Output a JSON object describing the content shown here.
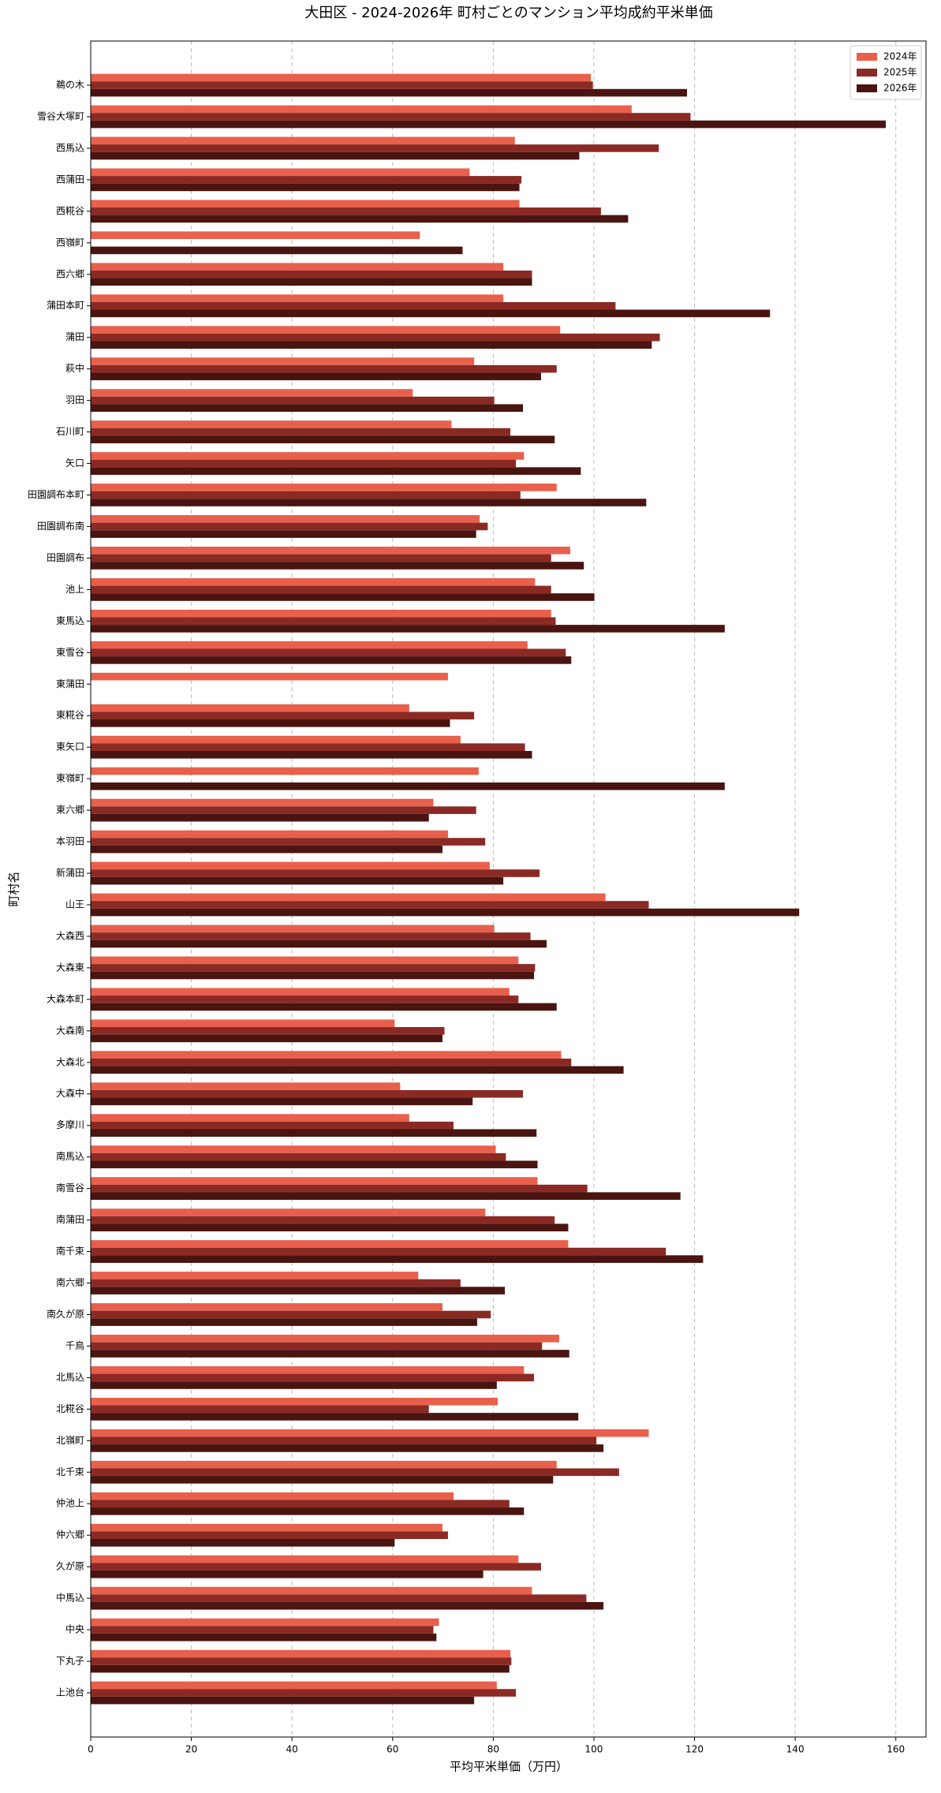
{
  "chart_data": {
    "type": "barh",
    "title": "大田区 - 2024-2026年 町村ごとのマンション平均成約平米単価",
    "x_label": "平均平米単価（万円）",
    "y_label": "町村名",
    "categories": [
      "鵜の木",
      "雪谷大塚町",
      "西馬込",
      "西蒲田",
      "西糀谷",
      "西嶺町",
      "西六郷",
      "蒲田本町",
      "蒲田",
      "萩中",
      "羽田",
      "石川町",
      "矢口",
      "田園調布本町",
      "田園調布南",
      "田園調布",
      "池上",
      "東馬込",
      "東雪谷",
      "東蒲田",
      "東糀谷",
      "東矢口",
      "東嶺町",
      "東六郷",
      "本羽田",
      "新蒲田",
      "山王",
      "大森西",
      "大森東",
      "大森本町",
      "大森南",
      "大森北",
      "大森中",
      "多摩川",
      "南馬込",
      "南雪谷",
      "南蒲田",
      "南千束",
      "南六郷",
      "南久が原",
      "千鳥",
      "北馬込",
      "北糀谷",
      "北嶺町",
      "北千束",
      "仲池上",
      "仲六郷",
      "久が原",
      "中馬込",
      "中央",
      "下丸子",
      "上池台"
    ],
    "series": [
      {
        "name": "2024年",
        "color": "#e8604c",
        "values": [
          99.4,
          107.5,
          84.3,
          75.3,
          85.2,
          65.4,
          82.0,
          82.0,
          93.3,
          76.2,
          64.0,
          71.7,
          86.1,
          92.6,
          77.3,
          95.3,
          88.3,
          91.5,
          86.8,
          71.0,
          63.3,
          73.5,
          77.1,
          68.1,
          71.0,
          79.3,
          102.3,
          80.2,
          85.0,
          83.2,
          60.4,
          93.5,
          61.5,
          63.3,
          80.5,
          88.8,
          78.4,
          94.9,
          65.1,
          69.9,
          93.1,
          86.1,
          80.9,
          110.9,
          92.6,
          72.1,
          69.9,
          85.0,
          87.7,
          69.2,
          83.4,
          80.7
        ]
      },
      {
        "name": "2025年",
        "color": "#8b2a24",
        "values": [
          99.8,
          119.2,
          112.9,
          85.6,
          101.4,
          null,
          87.7,
          104.3,
          113.1,
          92.6,
          80.2,
          83.4,
          84.5,
          85.4,
          78.9,
          91.5,
          91.5,
          92.4,
          94.4,
          null,
          76.2,
          86.3,
          null,
          76.6,
          78.4,
          89.2,
          110.9,
          87.4,
          88.3,
          85.0,
          70.3,
          95.5,
          85.9,
          72.1,
          82.5,
          98.7,
          92.2,
          114.3,
          73.5,
          79.5,
          89.7,
          88.1,
          67.2,
          100.5,
          105.0,
          83.2,
          71.0,
          89.5,
          98.5,
          68.1,
          83.6,
          84.5
        ]
      },
      {
        "name": "2026年",
        "color": "#4a1410",
        "values": [
          118.5,
          158.0,
          97.1,
          85.2,
          106.8,
          73.9,
          87.7,
          135.0,
          111.5,
          89.5,
          85.9,
          92.2,
          97.4,
          110.4,
          76.6,
          98.0,
          100.1,
          126.0,
          95.5,
          null,
          71.4,
          87.7,
          126.0,
          67.2,
          69.9,
          82.0,
          140.8,
          90.6,
          88.1,
          92.6,
          69.9,
          105.9,
          75.9,
          88.6,
          88.8,
          117.2,
          94.9,
          121.7,
          82.3,
          76.8,
          95.1,
          80.7,
          96.9,
          101.9,
          91.9,
          86.1,
          60.4,
          78.0,
          101.9,
          68.7,
          83.2,
          76.2
        ]
      }
    ],
    "xlim": [
      0,
      166
    ],
    "xticks": [
      0,
      20,
      40,
      60,
      80,
      100,
      120,
      140,
      160
    ],
    "grid": true,
    "legend": "upper right"
  }
}
